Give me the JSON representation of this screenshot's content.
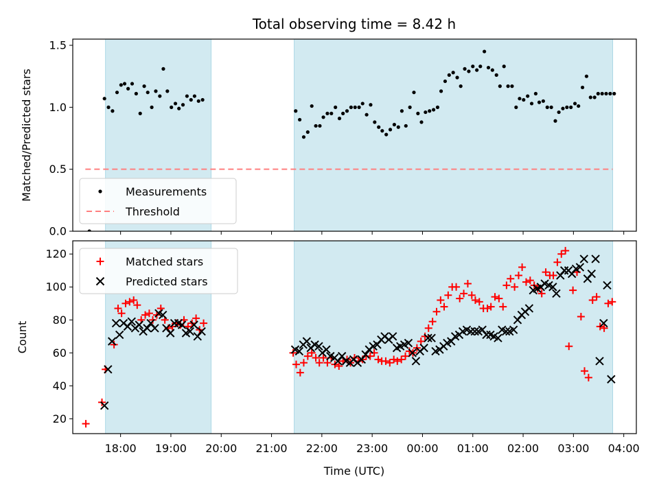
{
  "chart_data": {
    "type": "scatter",
    "title": "Total observing time = 8.42 h",
    "xlabel": "Time (UTC)",
    "x_unit": "hours after 00:00 UTC (negative = previous evening)",
    "xlim": [
      -6.95,
      4.25
    ],
    "xticks": [
      {
        "value": -6,
        "label": "18:00"
      },
      {
        "value": -5,
        "label": "19:00"
      },
      {
        "value": -4,
        "label": "20:00"
      },
      {
        "value": -3,
        "label": "21:00"
      },
      {
        "value": -2,
        "label": "22:00"
      },
      {
        "value": -1,
        "label": "23:00"
      },
      {
        "value": 0,
        "label": "00:00"
      },
      {
        "value": 1,
        "label": "01:00"
      },
      {
        "value": 2,
        "label": "02:00"
      },
      {
        "value": 3,
        "label": "03:00"
      },
      {
        "value": 4,
        "label": "04:00"
      }
    ],
    "shaded_intervals": [
      [
        -6.3,
        -4.2
      ],
      [
        -2.55,
        3.78
      ]
    ],
    "shade_color": "#add8e6",
    "panels": [
      {
        "ylabel": "Matched/Predicted stars",
        "ylim": [
          0.0,
          1.55
        ],
        "yticks": [
          "0.0",
          "0.5",
          "1.0",
          "1.5"
        ],
        "legend_position": "lower-left",
        "series": [
          {
            "name": "Measurements",
            "marker": "dot",
            "color": "#000000",
            "x": [
              -6.62,
              -6.32,
              -6.24,
              -6.16,
              -6.07,
              -5.99,
              -5.92,
              -5.85,
              -5.77,
              -5.69,
              -5.61,
              -5.53,
              -5.46,
              -5.38,
              -5.3,
              -5.22,
              -5.15,
              -5.07,
              -4.99,
              -4.91,
              -4.84,
              -4.76,
              -4.68,
              -4.6,
              -4.53,
              -4.45,
              -4.37,
              -2.52,
              -2.44,
              -2.36,
              -2.28,
              -2.2,
              -2.12,
              -2.04,
              -1.97,
              -1.89,
              -1.81,
              -1.73,
              -1.65,
              -1.58,
              -1.5,
              -1.42,
              -1.34,
              -1.26,
              -1.19,
              -1.11,
              -1.03,
              -0.95,
              -0.87,
              -0.8,
              -0.72,
              -0.64,
              -0.56,
              -0.48,
              -0.41,
              -0.33,
              -0.25,
              -0.17,
              -0.09,
              -0.02,
              0.06,
              0.14,
              0.22,
              0.3,
              0.37,
              0.45,
              0.53,
              0.61,
              0.69,
              0.76,
              0.84,
              0.92,
              1.0,
              1.08,
              1.15,
              1.23,
              1.31,
              1.39,
              1.47,
              1.54,
              1.62,
              1.7,
              1.78,
              1.86,
              1.93,
              2.01,
              2.09,
              2.17,
              2.25,
              2.32,
              2.4,
              2.48,
              2.56,
              2.64,
              2.71,
              2.79,
              2.87,
              2.95,
              3.03,
              3.1,
              3.18,
              3.26,
              3.34,
              3.42,
              3.49,
              3.57,
              3.65,
              3.73,
              3.81
            ],
            "y": [
              0.0,
              1.07,
              1.0,
              0.97,
              1.12,
              1.18,
              1.19,
              1.15,
              1.19,
              1.11,
              0.95,
              1.17,
              1.12,
              1.0,
              1.13,
              1.09,
              1.31,
              1.13,
              1.0,
              1.03,
              0.99,
              1.02,
              1.09,
              1.06,
              1.09,
              1.05,
              1.06,
              0.97,
              0.9,
              0.76,
              0.8,
              1.01,
              0.85,
              0.85,
              0.92,
              0.95,
              0.95,
              1.0,
              0.91,
              0.95,
              0.97,
              1.0,
              1.0,
              1.0,
              1.03,
              0.94,
              1.02,
              0.88,
              0.84,
              0.81,
              0.78,
              0.82,
              0.86,
              0.84,
              0.97,
              0.85,
              1.0,
              1.12,
              0.95,
              0.88,
              0.96,
              0.97,
              0.98,
              1.0,
              1.13,
              1.21,
              1.26,
              1.28,
              1.24,
              1.17,
              1.31,
              1.29,
              1.33,
              1.3,
              1.33,
              1.45,
              1.32,
              1.3,
              1.26,
              1.17,
              1.33,
              1.17,
              1.17,
              1.0,
              1.07,
              1.06,
              1.09,
              1.03,
              1.11,
              1.04,
              1.05,
              1.0,
              1.0,
              0.89,
              0.96,
              0.99,
              1.0,
              1.0,
              1.03,
              1.01,
              1.16,
              1.25,
              1.08,
              1.08,
              1.11,
              1.11,
              1.11,
              1.11,
              1.11
            ]
          },
          {
            "name": "Threshold",
            "marker": "dashed-line",
            "color": "#ff7f7f",
            "x": [
              -6.7,
              3.78
            ],
            "y": [
              0.5,
              0.5
            ]
          }
        ]
      },
      {
        "ylabel": "Count",
        "ylim": [
          11,
          128
        ],
        "yticks": [
          "20",
          "40",
          "60",
          "80",
          "100",
          "120"
        ],
        "legend_position": "upper-left",
        "series": [
          {
            "name": "Matched stars",
            "marker": "plus",
            "color": "#ff0000",
            "x": [
              -6.69,
              -6.37,
              -6.3,
              -6.13,
              -6.05,
              -5.98,
              -5.9,
              -5.82,
              -5.74,
              -5.67,
              -5.59,
              -5.51,
              -5.43,
              -5.36,
              -5.28,
              -5.2,
              -5.12,
              -5.05,
              -4.97,
              -4.89,
              -4.81,
              -4.74,
              -4.66,
              -4.58,
              -4.5,
              -4.43,
              -4.35,
              -2.57,
              -2.51,
              -2.43,
              -2.36,
              -2.28,
              -2.2,
              -2.12,
              -2.05,
              -1.97,
              -1.89,
              -1.81,
              -1.74,
              -1.66,
              -1.58,
              -1.5,
              -1.43,
              -1.35,
              -1.27,
              -1.19,
              -1.12,
              -1.04,
              -0.96,
              -0.88,
              -0.81,
              -0.73,
              -0.65,
              -0.57,
              -0.5,
              -0.42,
              -0.34,
              -0.26,
              -0.19,
              -0.11,
              -0.03,
              0.05,
              0.12,
              0.2,
              0.28,
              0.36,
              0.43,
              0.51,
              0.59,
              0.67,
              0.74,
              0.82,
              0.9,
              0.98,
              1.05,
              1.13,
              1.21,
              1.29,
              1.36,
              1.44,
              1.52,
              1.6,
              1.67,
              1.75,
              1.83,
              1.91,
              1.98,
              2.06,
              2.14,
              2.22,
              2.29,
              2.37,
              2.45,
              2.53,
              2.6,
              2.68,
              2.76,
              2.84,
              2.91,
              2.99,
              3.07,
              3.15,
              3.22,
              3.3,
              3.38,
              3.46,
              3.53,
              3.61,
              3.69,
              3.77
            ],
            "y": [
              17,
              30,
              50,
              65,
              87,
              84,
              90,
              91,
              92,
              89,
              80,
              83,
              84,
              80,
              83,
              87,
              80,
              75,
              76,
              78,
              77,
              80,
              76,
              78,
              81,
              74,
              78,
              60,
              53,
              48,
              54,
              58,
              60,
              57,
              54,
              57,
              54,
              57,
              53,
              52,
              55,
              56,
              54,
              57,
              55,
              56,
              58,
              58,
              60,
              56,
              55,
              55,
              54,
              56,
              55,
              56,
              58,
              61,
              60,
              63,
              67,
              70,
              75,
              79,
              85,
              92,
              88,
              95,
              100,
              100,
              93,
              96,
              102,
              95,
              92,
              91,
              87,
              87,
              88,
              94,
              93,
              88,
              101,
              105,
              100,
              107,
              112,
              103,
              104,
              101,
              99,
              96,
              109,
              107,
              107,
              115,
              120,
              122,
              64,
              98,
              109,
              82,
              49,
              45,
              92,
              94,
              76,
              75,
              90,
              91
            ],
            "note": "trailing values continue the visible marker sequence"
          },
          {
            "name": "Predicted stars",
            "marker": "x",
            "color": "#000000",
            "x": [
              -6.32,
              -6.25,
              -6.17,
              -6.09,
              -6.02,
              -5.94,
              -5.86,
              -5.78,
              -5.71,
              -5.63,
              -5.55,
              -5.47,
              -5.4,
              -5.32,
              -5.24,
              -5.16,
              -5.09,
              -5.01,
              -4.93,
              -4.85,
              -4.78,
              -4.7,
              -4.62,
              -4.54,
              -4.47,
              -4.39,
              -2.53,
              -2.45,
              -2.37,
              -2.3,
              -2.22,
              -2.14,
              -2.06,
              -1.99,
              -1.91,
              -1.83,
              -1.75,
              -1.68,
              -1.6,
              -1.52,
              -1.44,
              -1.37,
              -1.29,
              -1.21,
              -1.13,
              -1.06,
              -0.98,
              -0.9,
              -0.82,
              -0.75,
              -0.67,
              -0.59,
              -0.51,
              -0.44,
              -0.36,
              -0.28,
              -0.2,
              -0.13,
              -0.05,
              0.03,
              0.11,
              0.18,
              0.26,
              0.34,
              0.42,
              0.49,
              0.57,
              0.65,
              0.73,
              0.8,
              0.88,
              0.96,
              1.04,
              1.11,
              1.19,
              1.27,
              1.35,
              1.42,
              1.5,
              1.58,
              1.66,
              1.73,
              1.81,
              1.89,
              1.97,
              2.04,
              2.12,
              2.2,
              2.28,
              2.35,
              2.43,
              2.51,
              2.59,
              2.66,
              2.74,
              2.82,
              2.9,
              2.97,
              3.05,
              3.13,
              3.21,
              3.28,
              3.36,
              3.44,
              3.52,
              3.6,
              3.67,
              3.75
            ],
            "y": [
              28,
              50,
              67,
              78,
              71,
              78,
              76,
              79,
              75,
              77,
              73,
              75,
              78,
              75,
              84,
              83,
              75,
              72,
              78,
              78,
              77,
              72,
              73,
              77,
              70,
              73,
              62,
              61,
              65,
              67,
              63,
              65,
              64,
              60,
              62,
              58,
              57,
              55,
              58,
              55,
              54,
              56,
              54,
              56,
              59,
              62,
              64,
              65,
              68,
              70,
              68,
              70,
              63,
              64,
              65,
              66,
              60,
              55,
              61,
              63,
              69,
              69,
              61,
              62,
              64,
              66,
              67,
              70,
              71,
              73,
              74,
              73,
              73,
              73,
              74,
              71,
              71,
              70,
              69,
              74,
              73,
              73,
              74,
              80,
              83,
              85,
              87,
              98,
              99,
              100,
              102,
              101,
              100,
              96,
              107,
              110,
              110,
              108,
              111,
              112,
              117,
              105,
              108,
              117,
              55,
              78,
              101,
              44
            ],
            "note": "trailing values continue the visible marker sequence"
          }
        ]
      }
    ]
  }
}
